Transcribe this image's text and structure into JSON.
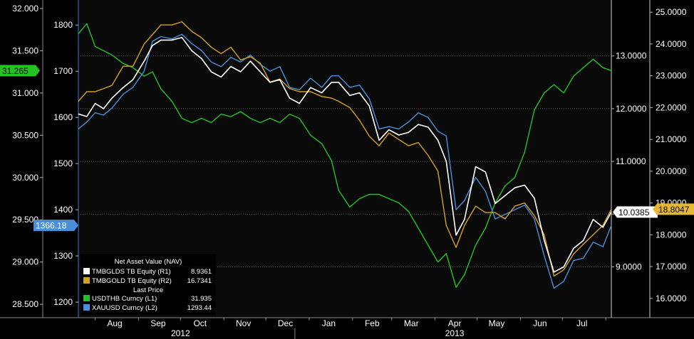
{
  "chart_data": {
    "type": "line",
    "x_months": [
      "Aug",
      "Sep",
      "Oct",
      "Nov",
      "Dec",
      "Jan",
      "Feb",
      "Mar",
      "Apr",
      "May",
      "Jun",
      "Jul"
    ],
    "x_years": [
      "2012",
      "2013"
    ],
    "x_range": [
      "2012-07-20",
      "2013-08-05"
    ],
    "axes": {
      "L1": {
        "ticks": [
          "28.500",
          "29.000",
          "29.500",
          "30.000",
          "30.500",
          "31.000",
          "31.500",
          "32.000"
        ],
        "range": [
          28.4,
          32.05
        ]
      },
      "L2": {
        "ticks": [
          "1200",
          "1300",
          "1400",
          "1500",
          "1600",
          "1700",
          "1800"
        ],
        "range": [
          1177,
          1845
        ]
      },
      "R1": {
        "ticks": [
          "9.0000",
          "10.0000",
          "11.0000",
          "12.0000",
          "13.0000"
        ],
        "range": [
          8.13,
          13.98
        ]
      },
      "R2": {
        "ticks": [
          "16.0000",
          "17.0000",
          "18.0000",
          "19.0000",
          "20.0000",
          "21.0000",
          "22.0000",
          "23.0000",
          "24.0000",
          "25.0000"
        ],
        "range": [
          15.55,
          25.25
        ]
      }
    },
    "series": [
      {
        "name": "USDTHB Curncy",
        "axis": "L1",
        "color": "#22c322",
        "x": [
          "2012-07-20",
          "2012-07-26",
          "2012-08-01",
          "2012-08-07",
          "2012-08-13",
          "2012-08-21",
          "2012-08-28",
          "2012-09-05",
          "2012-09-11",
          "2012-09-17",
          "2012-09-25",
          "2012-10-02",
          "2012-10-09",
          "2012-10-16",
          "2012-10-23",
          "2012-10-30",
          "2012-11-06",
          "2012-11-13",
          "2012-11-20",
          "2012-11-27",
          "2012-12-04",
          "2012-12-11",
          "2012-12-18",
          "2012-12-25",
          "2013-01-02",
          "2013-01-10",
          "2013-01-17",
          "2013-01-22",
          "2013-01-30",
          "2013-02-06",
          "2013-02-13",
          "2013-02-20",
          "2013-02-27",
          "2013-03-06",
          "2013-03-13",
          "2013-03-20",
          "2013-03-27",
          "2013-04-03",
          "2013-04-09",
          "2013-04-16",
          "2013-04-22",
          "2013-04-30",
          "2013-05-07",
          "2013-05-14",
          "2013-05-21",
          "2013-05-28",
          "2013-06-04",
          "2013-06-11",
          "2013-06-18",
          "2013-06-25",
          "2013-07-02",
          "2013-07-09",
          "2013-07-16",
          "2013-07-23",
          "2013-07-30",
          "2013-08-05"
        ],
        "values": [
          31.7,
          31.82,
          31.55,
          31.5,
          31.45,
          31.35,
          31.3,
          31.2,
          31.25,
          31.05,
          30.9,
          30.7,
          30.65,
          30.7,
          30.65,
          30.75,
          30.72,
          30.78,
          30.7,
          30.65,
          30.7,
          30.65,
          30.75,
          30.7,
          30.5,
          30.4,
          30.2,
          29.85,
          29.65,
          29.75,
          29.8,
          29.8,
          29.75,
          29.7,
          29.6,
          29.4,
          29.2,
          29.0,
          29.1,
          28.7,
          28.85,
          29.2,
          29.4,
          29.7,
          29.9,
          30.0,
          30.3,
          30.8,
          31.0,
          31.1,
          31.0,
          31.2,
          31.3,
          31.4,
          31.3,
          31.265
        ]
      },
      {
        "name": "XAUUSD Curncy",
        "axis": "L2",
        "color": "#4a8fd8",
        "x": [
          "2012-07-20",
          "2012-07-26",
          "2012-08-01",
          "2012-08-07",
          "2012-08-13",
          "2012-08-21",
          "2012-08-28",
          "2012-09-05",
          "2012-09-11",
          "2012-09-17",
          "2012-09-25",
          "2012-10-02",
          "2012-10-09",
          "2012-10-16",
          "2012-10-23",
          "2012-10-30",
          "2012-11-06",
          "2012-11-13",
          "2012-11-20",
          "2012-11-27",
          "2012-12-04",
          "2012-12-11",
          "2012-12-18",
          "2012-12-25",
          "2013-01-02",
          "2013-01-10",
          "2013-01-17",
          "2013-01-22",
          "2013-01-30",
          "2013-02-06",
          "2013-02-13",
          "2013-02-20",
          "2013-02-27",
          "2013-03-06",
          "2013-03-13",
          "2013-03-20",
          "2013-03-27",
          "2013-04-03",
          "2013-04-09",
          "2013-04-16",
          "2013-04-22",
          "2013-04-30",
          "2013-05-07",
          "2013-05-14",
          "2013-05-21",
          "2013-05-28",
          "2013-06-04",
          "2013-06-11",
          "2013-06-18",
          "2013-06-25",
          "2013-07-02",
          "2013-07-09",
          "2013-07-16",
          "2013-07-23",
          "2013-07-30",
          "2013-08-05"
        ],
        "values": [
          1575,
          1590,
          1610,
          1605,
          1620,
          1650,
          1665,
          1700,
          1765,
          1775,
          1770,
          1780,
          1760,
          1745,
          1720,
          1710,
          1730,
          1720,
          1735,
          1715,
          1700,
          1710,
          1665,
          1660,
          1685,
          1665,
          1690,
          1690,
          1665,
          1670,
          1640,
          1575,
          1580,
          1575,
          1590,
          1610,
          1600,
          1570,
          1560,
          1400,
          1420,
          1470,
          1440,
          1380,
          1390,
          1400,
          1410,
          1380,
          1300,
          1230,
          1245,
          1290,
          1295,
          1330,
          1320,
          1366.18
        ]
      },
      {
        "name": "TMBGOLD TB Equity",
        "axis": "R2",
        "color": "#d4a020",
        "x": [
          "2012-07-20",
          "2012-07-26",
          "2012-08-01",
          "2012-08-07",
          "2012-08-13",
          "2012-08-21",
          "2012-08-28",
          "2012-09-05",
          "2012-09-11",
          "2012-09-17",
          "2012-09-25",
          "2012-10-02",
          "2012-10-09",
          "2012-10-16",
          "2012-10-23",
          "2012-10-30",
          "2012-11-06",
          "2012-11-13",
          "2012-11-20",
          "2012-11-27",
          "2012-12-04",
          "2012-12-11",
          "2012-12-18",
          "2012-12-25",
          "2013-01-02",
          "2013-01-10",
          "2013-01-17",
          "2013-01-22",
          "2013-01-30",
          "2013-02-06",
          "2013-02-13",
          "2013-02-20",
          "2013-02-27",
          "2013-03-06",
          "2013-03-13",
          "2013-03-20",
          "2013-03-27",
          "2013-04-03",
          "2013-04-09",
          "2013-04-16",
          "2013-04-22",
          "2013-04-30",
          "2013-05-07",
          "2013-05-14",
          "2013-05-21",
          "2013-05-28",
          "2013-06-04",
          "2013-06-11",
          "2013-06-18",
          "2013-06-25",
          "2013-07-02",
          "2013-07-09",
          "2013-07-16",
          "2013-07-23",
          "2013-07-30",
          "2013-08-05"
        ],
        "values": [
          22.2,
          22.5,
          22.5,
          22.6,
          22.7,
          23.3,
          23.3,
          24.0,
          24.3,
          24.6,
          24.6,
          24.7,
          24.4,
          24.2,
          23.9,
          23.7,
          23.9,
          23.5,
          23.6,
          23.4,
          22.8,
          22.9,
          22.6,
          22.5,
          22.5,
          22.35,
          22.3,
          22.2,
          22.0,
          21.6,
          21.1,
          20.8,
          21.2,
          21.0,
          20.8,
          20.9,
          20.5,
          20.0,
          18.3,
          17.6,
          18.3,
          18.9,
          18.7,
          18.7,
          18.5,
          18.9,
          19.0,
          18.6,
          18.0,
          16.7,
          16.9,
          17.4,
          17.7,
          18.0,
          18.3,
          18.8047
        ]
      },
      {
        "name": "TMBGLDS TB Equity",
        "axis": "R1",
        "color": "#ffffff",
        "x": [
          "2012-07-20",
          "2012-07-26",
          "2012-08-01",
          "2012-08-07",
          "2012-08-13",
          "2012-08-21",
          "2012-08-28",
          "2012-09-05",
          "2012-09-11",
          "2012-09-17",
          "2012-09-25",
          "2012-10-02",
          "2012-10-09",
          "2012-10-16",
          "2012-10-23",
          "2012-10-30",
          "2012-11-06",
          "2012-11-13",
          "2012-11-20",
          "2012-11-27",
          "2012-12-04",
          "2012-12-11",
          "2012-12-18",
          "2012-12-25",
          "2013-01-02",
          "2013-01-10",
          "2013-01-17",
          "2013-01-22",
          "2013-01-30",
          "2013-02-06",
          "2013-02-13",
          "2013-02-20",
          "2013-02-27",
          "2013-03-06",
          "2013-03-13",
          "2013-03-20",
          "2013-03-27",
          "2013-04-03",
          "2013-04-09",
          "2013-04-16",
          "2013-04-22",
          "2013-04-30",
          "2013-05-07",
          "2013-05-14",
          "2013-05-21",
          "2013-05-28",
          "2013-06-04",
          "2013-06-11",
          "2013-06-18",
          "2013-06-25",
          "2013-07-02",
          "2013-07-09",
          "2013-07-16",
          "2013-07-23",
          "2013-07-30",
          "2013-08-05"
        ],
        "values": [
          11.9,
          11.85,
          12.1,
          12.0,
          12.2,
          12.4,
          12.55,
          12.9,
          13.2,
          13.3,
          13.3,
          13.35,
          13.1,
          12.95,
          12.7,
          12.6,
          12.8,
          12.7,
          12.9,
          12.7,
          12.5,
          12.55,
          12.2,
          12.1,
          12.4,
          12.3,
          12.5,
          12.5,
          12.25,
          12.3,
          12.05,
          11.4,
          11.6,
          11.5,
          11.55,
          11.7,
          11.65,
          11.4,
          11.0,
          9.6,
          9.9,
          10.9,
          10.8,
          10.2,
          10.35,
          10.5,
          10.55,
          10.3,
          9.5,
          8.9,
          9.0,
          9.35,
          9.5,
          9.9,
          9.75,
          10.0385
        ]
      }
    ],
    "last_value_tags": [
      {
        "text": "31.265",
        "axis": "L1",
        "value": 31.265,
        "color": "#22c322",
        "text_color": "#000000",
        "side": "left"
      },
      {
        "text": "1366.18",
        "axis": "L2",
        "value": 1366.18,
        "color": "#4a8fd8",
        "text_color": "#ffffff",
        "side": "left"
      },
      {
        "text": "10.0385",
        "axis": "R1",
        "value": 10.0385,
        "color": "#ffffff",
        "text_color": "#000000",
        "side": "right"
      },
      {
        "text": "18.8047",
        "axis": "R2",
        "value": 18.8047,
        "color": "#e8b830",
        "text_color": "#000000",
        "side": "right"
      }
    ],
    "legend": {
      "position": "bottom-left",
      "nav_header": "Net Asset Value (NAV)",
      "last_price_header": "Last Price",
      "entries": [
        {
          "label": "TMBGLDS TB Equity  (R1)",
          "value": "8.9361",
          "color": "#ffffff"
        },
        {
          "label": "TMBGOLD TB Equity  (R2)",
          "value": "16.7341",
          "color": "#d4a020"
        },
        {
          "label": "USDTHB Curncy  (L1)",
          "value": "31.935",
          "color": "#22c322"
        },
        {
          "label": "XAUUSD Curncy  (L2)",
          "value": "1293.44",
          "color": "#4a8fd8"
        }
      ]
    },
    "grid": true,
    "colors": {
      "background": "#000000",
      "plot_background": "#0a0a0a",
      "axis_text": "#ffffff",
      "grid": "#555555"
    }
  }
}
